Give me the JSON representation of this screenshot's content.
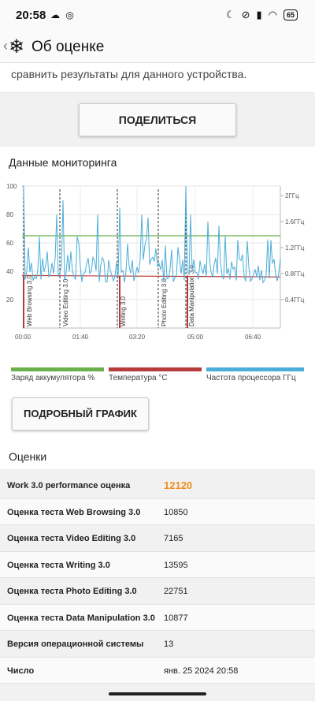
{
  "status": {
    "time": "20:58",
    "battery": "65"
  },
  "header": {
    "title": "Об оценке"
  },
  "top_text": "сравнить результаты для данного устройства.",
  "share_label": "ПОДЕЛИТЬСЯ",
  "monitoring": {
    "title": "Данные мониторинга",
    "detail_label": "ПОДРОБНЫЙ ГРАФИК",
    "legend": [
      {
        "label": "Заряд аккумулятора %",
        "color": "#6ab04c"
      },
      {
        "label": "Температура °C",
        "color": "#b83b3b"
      },
      {
        "label": "Частота процессора ГГц",
        "color": "#4aaed9"
      }
    ]
  },
  "chart_data": {
    "type": "line",
    "x_ticks": [
      "00:00",
      "01:40",
      "03:20",
      "05:00",
      "06:40"
    ],
    "y_left_ticks": [
      "20",
      "40",
      "60",
      "80",
      "100"
    ],
    "y_right_ticks": [
      "0.4ГГц",
      "0.8ГГц",
      "1.2ГГц",
      "1.6ГГц",
      "2ГГц"
    ],
    "ylim": [
      0,
      100
    ],
    "phase_markers": [
      "Web Browsing 3.0",
      "Video Editing 3.0",
      "Writing 3.0",
      "Photo Editing 3.0",
      "Data Manipulation 3.0"
    ],
    "series": [
      {
        "name": "Заряд аккумулятора %",
        "color": "#6ab04c",
        "values": [
          65,
          65
        ]
      },
      {
        "name": "Температура °C",
        "color": "#b83b3b",
        "values": [
          37,
          36
        ]
      },
      {
        "name": "Частота процессора ГГц",
        "color": "#4aaed9"
      }
    ]
  },
  "scores": {
    "title": "Оценки",
    "rows": [
      {
        "label": "Work 3.0 performance оценка",
        "value": "12120"
      },
      {
        "label": "Оценка теста Web Browsing 3.0",
        "value": "10850"
      },
      {
        "label": "Оценка теста Video Editing 3.0",
        "value": "7165"
      },
      {
        "label": "Оценка теста Writing 3.0",
        "value": "13595"
      },
      {
        "label": "Оценка теста Photo Editing 3.0",
        "value": "22751"
      },
      {
        "label": "Оценка теста Data Manipulation 3.0",
        "value": "10877"
      },
      {
        "label": "Версия операционной системы",
        "value": "13"
      },
      {
        "label": "Число",
        "value": "янв. 25 2024 20:58"
      }
    ]
  }
}
